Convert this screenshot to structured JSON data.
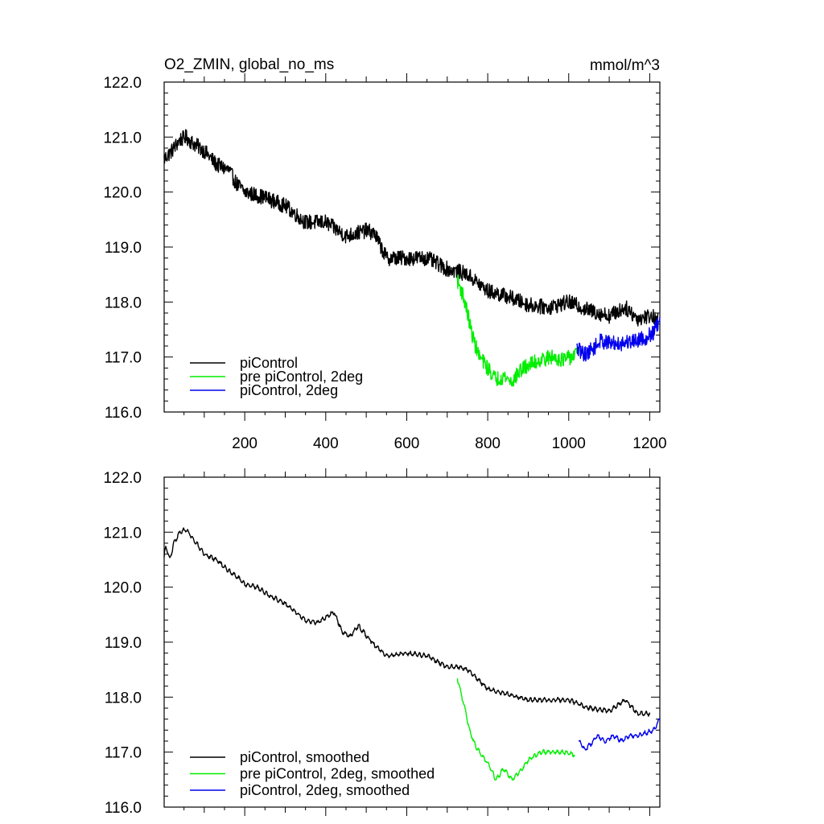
{
  "chart_data": [
    {
      "type": "line",
      "title_left": "O2_ZMIN, global_no_ms",
      "title_right": "mmol/m^3",
      "xlim": [
        1,
        1225
      ],
      "ylim": [
        116.0,
        122.0
      ],
      "x_ticks": [
        200,
        400,
        600,
        800,
        1000,
        1200
      ],
      "x_tick_labels": [
        "200",
        "400",
        "600",
        "800",
        "1000",
        "1200"
      ],
      "y_ticks": [
        116,
        117,
        118,
        119,
        120,
        121,
        122
      ],
      "y_tick_labels": [
        "116.0",
        "117.0",
        "118.0",
        "119.0",
        "120.0",
        "121.0",
        "122.0"
      ],
      "legend_position": "bottom-left",
      "series": [
        {
          "name": "piControl",
          "color": "#000000",
          "noise": 0.14,
          "x": [
            1,
            20,
            40,
            55,
            70,
            100,
            130,
            160,
            180,
            200,
            250,
            300,
            350,
            400,
            450,
            500,
            520,
            550,
            600,
            650,
            700,
            730,
            750,
            800,
            850,
            900,
            950,
            1000,
            1050,
            1100,
            1140,
            1170,
            1200,
            1220
          ],
          "y": [
            120.6,
            120.75,
            120.95,
            121.0,
            120.9,
            120.75,
            120.5,
            120.4,
            120.15,
            120.0,
            119.9,
            119.75,
            119.45,
            119.45,
            119.2,
            119.3,
            119.25,
            118.8,
            118.8,
            118.8,
            118.6,
            118.55,
            118.5,
            118.2,
            118.1,
            117.95,
            117.9,
            118.0,
            117.85,
            117.75,
            117.9,
            117.7,
            117.75,
            117.7
          ]
        },
        {
          "name": "pre piControl, 2deg",
          "color": "#00ee00",
          "noise": 0.14,
          "x": [
            725,
            740,
            750,
            760,
            770,
            780,
            800,
            820,
            840,
            860,
            880,
            900,
            930,
            960,
            990,
            1020
          ],
          "y": [
            118.4,
            118.1,
            117.8,
            117.45,
            117.2,
            117.0,
            116.8,
            116.6,
            116.65,
            116.55,
            116.75,
            116.85,
            116.95,
            117.0,
            116.95,
            117.05
          ]
        },
        {
          "name": "piControl, 2deg",
          "color": "#0000ee",
          "noise": 0.14,
          "x": [
            1020,
            1040,
            1060,
            1080,
            1100,
            1130,
            1160,
            1190,
            1210,
            1225
          ],
          "y": [
            117.15,
            117.05,
            117.15,
            117.3,
            117.25,
            117.25,
            117.3,
            117.35,
            117.45,
            117.65
          ]
        }
      ]
    },
    {
      "type": "line",
      "xlim": [
        1,
        1225
      ],
      "ylim": [
        116.0,
        122.0
      ],
      "x_ticks": [
        200,
        400,
        600,
        800,
        1000,
        1200
      ],
      "y_ticks": [
        116,
        117,
        118,
        119,
        120,
        121,
        122
      ],
      "y_tick_labels": [
        "116.0",
        "117.0",
        "118.0",
        "119.0",
        "120.0",
        "121.0",
        "122.0"
      ],
      "legend_position": "bottom-left",
      "series": [
        {
          "name": "piControl, smoothed",
          "color": "#000000",
          "noise": 0.05,
          "x": [
            1,
            5,
            15,
            25,
            40,
            55,
            70,
            100,
            130,
            160,
            180,
            200,
            230,
            260,
            300,
            350,
            380,
            400,
            420,
            440,
            460,
            480,
            520,
            550,
            600,
            650,
            700,
            730,
            750,
            800,
            850,
            900,
            950,
            1000,
            1050,
            1100,
            1140,
            1170,
            1200
          ],
          "y": [
            120.55,
            120.75,
            120.5,
            120.8,
            121.0,
            121.05,
            120.9,
            120.6,
            120.5,
            120.3,
            120.2,
            120.05,
            120.0,
            119.85,
            119.7,
            119.4,
            119.35,
            119.45,
            119.55,
            119.2,
            119.1,
            119.3,
            118.95,
            118.75,
            118.8,
            118.75,
            118.55,
            118.55,
            118.5,
            118.15,
            118.05,
            117.95,
            117.95,
            117.95,
            117.8,
            117.75,
            117.95,
            117.7,
            117.7
          ]
        },
        {
          "name": "pre piControl, 2deg, smoothed",
          "color": "#00ee00",
          "noise": 0.05,
          "x": [
            725,
            735,
            745,
            755,
            765,
            775,
            790,
            805,
            820,
            840,
            860,
            880,
            900,
            930,
            960,
            990,
            1015
          ],
          "y": [
            118.35,
            118.05,
            117.75,
            117.4,
            117.2,
            117.05,
            116.9,
            116.75,
            116.5,
            116.7,
            116.5,
            116.65,
            116.85,
            117.0,
            117.0,
            117.0,
            116.95
          ]
        },
        {
          "name": "piControl, 2deg, smoothed",
          "color": "#0000ee",
          "noise": 0.05,
          "x": [
            1025,
            1040,
            1055,
            1070,
            1090,
            1110,
            1130,
            1150,
            1170,
            1190,
            1210,
            1225
          ],
          "y": [
            117.2,
            117.05,
            117.15,
            117.3,
            117.2,
            117.3,
            117.2,
            117.3,
            117.3,
            117.35,
            117.4,
            117.6
          ]
        }
      ]
    }
  ]
}
